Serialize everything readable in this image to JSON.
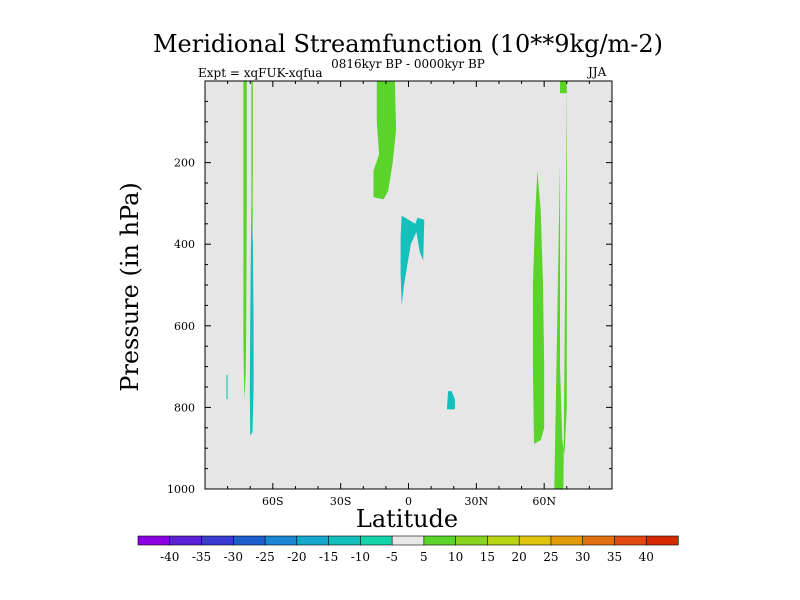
{
  "chart_data": {
    "type": "heatmap",
    "title": "Meridional Streamfunction (10**9kg/m-2)",
    "subtitle_left": "Expt = xqFUK-xqfua",
    "subtitle_center": "0816kyr BP - 0000kyr BP",
    "subtitle_right": "JJA",
    "xlabel": "Latitude",
    "ylabel": "Pressure (in hPa)",
    "xlim": [
      -90,
      90
    ],
    "ylim": [
      1000,
      0
    ],
    "x_ticks": [
      {
        "value": -60,
        "label": "60S"
      },
      {
        "value": -30,
        "label": "30S"
      },
      {
        "value": 0,
        "label": "0"
      },
      {
        "value": 30,
        "label": "30N"
      },
      {
        "value": 60,
        "label": "60N"
      }
    ],
    "y_ticks": [
      {
        "value": 200,
        "label": "200"
      },
      {
        "value": 400,
        "label": "400"
      },
      {
        "value": 600,
        "label": "600"
      },
      {
        "value": 800,
        "label": "800"
      },
      {
        "value": 1000,
        "label": "1000"
      }
    ],
    "background_color": "#e6e6e6",
    "colorbar": {
      "labels": [
        "-40",
        "-35",
        "-30",
        "-25",
        "-20",
        "-15",
        "-10",
        "-5",
        "5",
        "10",
        "15",
        "20",
        "25",
        "30",
        "35",
        "40"
      ],
      "colors": [
        "#8c00e0",
        "#5c20d8",
        "#3a3ad2",
        "#1f5ed0",
        "#1a86d4",
        "#13a8cc",
        "#14c0bc",
        "#15d4aa",
        "#e8e8e8",
        "#5ad42a",
        "#88d41e",
        "#b8d414",
        "#e0c40c",
        "#e29a08",
        "#e07010",
        "#e04a10",
        "#d82800"
      ]
    },
    "regions": [
      {
        "name": "nh-high-lat-positive-band",
        "color": "#5ad42a",
        "points": [
          [
            64.5,
            1000
          ],
          [
            68.5,
            1000
          ],
          [
            70,
            0
          ],
          [
            70,
            200
          ],
          [
            70,
            400
          ],
          [
            70,
            600
          ],
          [
            70,
            800
          ],
          [
            69,
            915
          ],
          [
            68,
            880
          ],
          [
            67,
            700
          ],
          [
            67,
            400
          ],
          [
            67,
            200
          ]
        ]
      },
      {
        "name": "nh-mid-lat-positive-lobe",
        "color": "#5ad42a",
        "points": [
          [
            57,
            220
          ],
          [
            58.5,
            320
          ],
          [
            59.5,
            500
          ],
          [
            60,
            700
          ],
          [
            60,
            850
          ],
          [
            58.5,
            880
          ],
          [
            55.5,
            890
          ],
          [
            55,
            700
          ],
          [
            55,
            500
          ],
          [
            56,
            330
          ]
        ]
      },
      {
        "name": "nh-high-lat-positive-band-top",
        "color": "#5ad42a",
        "points": [
          [
            67,
            0
          ],
          [
            70,
            0
          ],
          [
            70,
            30
          ],
          [
            67,
            30
          ]
        ]
      },
      {
        "name": "sh-polar-positive-strip",
        "color": "#5ad42a",
        "points": [
          [
            -73,
            0
          ],
          [
            -71.5,
            0
          ],
          [
            -71.5,
            300
          ],
          [
            -71.8,
            600
          ],
          [
            -72,
            720
          ],
          [
            -72.6,
            780
          ],
          [
            -73,
            650
          ],
          [
            -73,
            300
          ]
        ]
      },
      {
        "name": "sh-polar-positive-strip-2",
        "color": "#5ad42a",
        "points": [
          [
            -69.5,
            0
          ],
          [
            -68.8,
            0
          ],
          [
            -68.8,
            200
          ],
          [
            -69,
            400
          ],
          [
            -69.2,
            500
          ],
          [
            -69.5,
            300
          ]
        ]
      },
      {
        "name": "sh-polar-negative-strip",
        "color": "#14c0bc",
        "points": [
          [
            -69.5,
            300
          ],
          [
            -68.8,
            400
          ],
          [
            -68.5,
            600
          ],
          [
            -68.5,
            750
          ],
          [
            -69,
            860
          ],
          [
            -70,
            870
          ],
          [
            -70.2,
            750
          ],
          [
            -70,
            600
          ],
          [
            -69.8,
            450
          ]
        ]
      },
      {
        "name": "sh-polar-negative-speck",
        "color": "#14c0bc",
        "points": [
          [
            -80.5,
            720
          ],
          [
            -80,
            720
          ],
          [
            -80,
            780
          ],
          [
            -80.5,
            780
          ]
        ]
      },
      {
        "name": "tropical-upper-positive-lobe",
        "color": "#5ad42a",
        "points": [
          [
            -14,
            0
          ],
          [
            -6,
            0
          ],
          [
            -5.5,
            120
          ],
          [
            -7,
            200
          ],
          [
            -9,
            270
          ],
          [
            -11,
            290
          ],
          [
            -15.5,
            285
          ],
          [
            -15.5,
            220
          ],
          [
            -13,
            180
          ],
          [
            -14,
            100
          ]
        ]
      },
      {
        "name": "tropical-negative-lobe",
        "color": "#14c0bc",
        "points": [
          [
            -3,
            330
          ],
          [
            0,
            340
          ],
          [
            3,
            350
          ],
          [
            4,
            335
          ],
          [
            7,
            340
          ],
          [
            6.5,
            440
          ],
          [
            5,
            420
          ],
          [
            3.5,
            370
          ],
          [
            1,
            400
          ],
          [
            -2,
            500
          ],
          [
            -3,
            550
          ],
          [
            -3.5,
            470
          ],
          [
            -3.5,
            380
          ]
        ]
      },
      {
        "name": "nh-subtropical-negative-speck",
        "color": "#14c0bc",
        "points": [
          [
            17.5,
            760
          ],
          [
            19,
            760
          ],
          [
            20.5,
            780
          ],
          [
            20.5,
            805
          ],
          [
            17,
            805
          ]
        ]
      }
    ]
  }
}
